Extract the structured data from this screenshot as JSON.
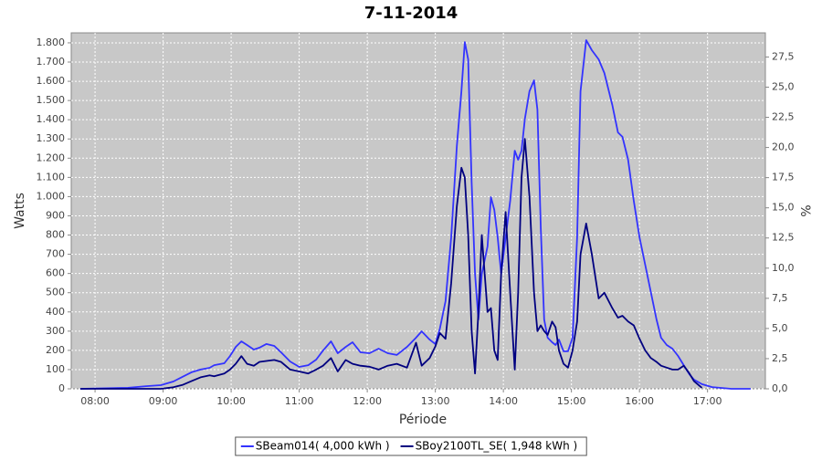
{
  "chart_data": {
    "type": "line",
    "title": "7-11-2014",
    "x_label": "Période",
    "y_label": "Watts",
    "y2_label": "%",
    "grid": true,
    "background": "#c8c8c8",
    "legend": "bottom",
    "x": [
      "07:47",
      "08:29",
      "08:45",
      "08:58",
      "09:09",
      "09:17",
      "09:25",
      "09:33",
      "09:41",
      "09:45",
      "09:54",
      "09:59",
      "10:04",
      "10:09",
      "10:14",
      "10:20",
      "10:25",
      "10:31",
      "10:38",
      "10:44",
      "10:52",
      "11:00",
      "11:08",
      "11:15",
      "11:21",
      "11:28",
      "11:34",
      "11:41",
      "11:47",
      "11:54",
      "12:02",
      "12:10",
      "12:18",
      "12:26",
      "12:35",
      "12:43",
      "12:48",
      "12:55",
      "13:00",
      "13:04",
      "13:09",
      "13:14",
      "13:19",
      "13:23",
      "13:26",
      "13:29",
      "13:32",
      "13:35",
      "13:38",
      "13:41",
      "13:46",
      "13:49",
      "13:52",
      "13:55",
      "13:58",
      "14:02",
      "14:06",
      "14:10",
      "14:13",
      "14:16",
      "14:19",
      "14:23",
      "14:27",
      "14:30",
      "14:33",
      "14:36",
      "14:39",
      "14:43",
      "14:46",
      "14:49",
      "14:53",
      "14:57",
      "15:01",
      "15:05",
      "15:08",
      "15:13",
      "15:18",
      "15:24",
      "15:29",
      "15:36",
      "15:41",
      "15:45",
      "15:50",
      "15:55",
      "16:00",
      "16:05",
      "16:10",
      "16:15",
      "16:19",
      "16:24",
      "16:29",
      "16:34",
      "16:39",
      "16:44",
      "16:48",
      "16:55",
      "17:04",
      "17:21",
      "17:38"
    ],
    "xlim": [
      "07:39",
      "17:51"
    ],
    "xticks": [
      "08:00",
      "09:00",
      "10:00",
      "11:00",
      "12:00",
      "13:00",
      "14:00",
      "15:00",
      "16:00",
      "17:00"
    ],
    "ylim": [
      0,
      1852
    ],
    "yticks": [
      0,
      100,
      200,
      300,
      400,
      500,
      600,
      700,
      800,
      900,
      {
        "value": 1000,
        "label": "1.000"
      },
      {
        "value": 1100,
        "label": "1.100"
      },
      {
        "value": 1200,
        "label": "1.200"
      },
      {
        "value": 1300,
        "label": "1.300"
      },
      {
        "value": 1400,
        "label": "1.400"
      },
      {
        "value": 1500,
        "label": "1.500"
      },
      {
        "value": 1600,
        "label": "1.600"
      },
      {
        "value": 1700,
        "label": "1.700"
      },
      {
        "value": 1800,
        "label": "1.800"
      }
    ],
    "y2lim": [
      0,
      29.5
    ],
    "y2ticks": [
      {
        "value": 0,
        "label": "0,0"
      },
      {
        "value": 2.5,
        "label": "2,5"
      },
      {
        "value": 5,
        "label": "5,0"
      },
      {
        "value": 7.5,
        "label": "7,5"
      },
      {
        "value": 10,
        "label": "10,0"
      },
      {
        "value": 12.5,
        "label": "12,5"
      },
      {
        "value": 15,
        "label": "15,0"
      },
      {
        "value": 17.5,
        "label": "17,5"
      },
      {
        "value": 20,
        "label": "20,0"
      },
      {
        "value": 22.5,
        "label": "22,5"
      },
      {
        "value": 25,
        "label": "25,0"
      },
      {
        "value": 27.5,
        "label": "27,5"
      }
    ],
    "series": [
      {
        "name": "SBeam014( 4,000 kWh )",
        "color": "#3333ff",
        "values": [
          0,
          5,
          14,
          19,
          38,
          62,
          86,
          100,
          109,
          123,
          133,
          171,
          218,
          247,
          228,
          204,
          214,
          233,
          223,
          190,
          142,
          114,
          123,
          152,
          199,
          247,
          185,
          218,
          242,
          190,
          185,
          209,
          185,
          176,
          218,
          266,
          299,
          256,
          233,
          313,
          456,
          788,
          1263,
          1548,
          1804,
          1714,
          1073,
          598,
          361,
          598,
          741,
          997,
          931,
          788,
          598,
          788,
          978,
          1239,
          1192,
          1239,
          1405,
          1548,
          1605,
          1453,
          836,
          361,
          266,
          242,
          228,
          256,
          195,
          195,
          266,
          788,
          1548,
          1814,
          1762,
          1714,
          1643,
          1477,
          1334,
          1311,
          1192,
          978,
          788,
          646,
          503,
          361,
          266,
          228,
          209,
          171,
          123,
          76,
          48,
          24,
          9,
          0,
          0
        ]
      },
      {
        "name": "SBoy2100TL_SE( 1,948 kWh )",
        "color": "#000080",
        "values": [
          0,
          0,
          0,
          0,
          8,
          20,
          40,
          60,
          70,
          65,
          80,
          100,
          130,
          170,
          130,
          120,
          140,
          145,
          150,
          140,
          100,
          90,
          80,
          100,
          120,
          160,
          90,
          150,
          130,
          120,
          115,
          100,
          120,
          130,
          110,
          240,
          120,
          160,
          220,
          290,
          260,
          550,
          950,
          1150,
          1100,
          800,
          300,
          80,
          400,
          800,
          400,
          420,
          200,
          150,
          600,
          920,
          500,
          100,
          500,
          1100,
          1300,
          1000,
          500,
          300,
          330,
          300,
          280,
          350,
          320,
          200,
          130,
          110,
          200,
          350,
          700,
          860,
          700,
          470,
          500,
          420,
          370,
          380,
          350,
          330,
          260,
          200,
          160,
          140,
          120,
          110,
          100,
          100,
          120,
          80,
          40,
          5,
          null,
          null,
          null
        ]
      }
    ]
  }
}
